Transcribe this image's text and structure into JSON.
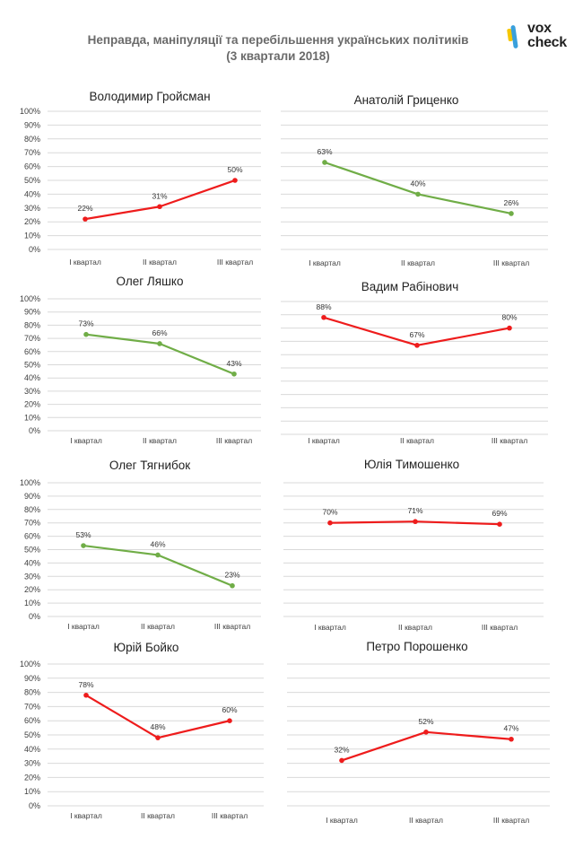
{
  "page": {
    "title_line1": "Неправда, маніпуляції та перебільшення українських політиків",
    "title_line2": "(3 квартали 2018)",
    "logo_line1": "vox",
    "logo_line2": "check"
  },
  "colors": {
    "red": "#ee1c1c",
    "green": "#70ad47",
    "grid": "#d9d9d9",
    "text": "#404040",
    "title": "#222222",
    "logo_yellow": "#f6c700",
    "logo_blue": "#3aa0dc"
  },
  "chart_data": [
    {
      "type": "line",
      "title": "Володимир Гройсман",
      "categories": [
        "I квартал",
        "II квартал",
        "III квартал"
      ],
      "values": [
        22,
        31,
        50
      ],
      "labels": [
        "22%",
        "31%",
        "50%"
      ],
      "color": "red",
      "yaxis": true,
      "yticks": [
        "0%",
        "10%",
        "20%",
        "30%",
        "40%",
        "50%",
        "60%",
        "70%",
        "80%",
        "90%",
        "100%"
      ],
      "ylim": [
        0,
        100
      ]
    },
    {
      "type": "line",
      "title": "Анатолій Гриценко",
      "categories": [
        "I квартал",
        "II квартал",
        "III квартал"
      ],
      "values": [
        63,
        40,
        26
      ],
      "labels": [
        "63%",
        "40%",
        "26%"
      ],
      "color": "green",
      "yaxis": false,
      "ylim": [
        0,
        100
      ]
    },
    {
      "type": "line",
      "title": "Олег Ляшко",
      "categories": [
        "I квартал",
        "II квартал",
        "III квартал"
      ],
      "values": [
        73,
        66,
        43
      ],
      "labels": [
        "73%",
        "66%",
        "43%"
      ],
      "color": "green",
      "yaxis": true,
      "yticks": [
        "0%",
        "10%",
        "20%",
        "30%",
        "40%",
        "50%",
        "60%",
        "70%",
        "80%",
        "90%",
        "100%"
      ],
      "ylim": [
        0,
        100
      ]
    },
    {
      "type": "line",
      "title": "Вадим Рабінович",
      "categories": [
        "I квартал",
        "II квартал",
        "III квартал"
      ],
      "values": [
        88,
        67,
        80
      ],
      "labels": [
        "88%",
        "67%",
        "80%"
      ],
      "color": "red",
      "yaxis": false,
      "ylim": [
        0,
        100
      ]
    },
    {
      "type": "line",
      "title": "Олег Тягнибок",
      "categories": [
        "I квартал",
        "II квартал",
        "III квартал"
      ],
      "values": [
        53,
        46,
        23
      ],
      "labels": [
        "53%",
        "46%",
        "23%"
      ],
      "color": "green",
      "yaxis": true,
      "yticks": [
        "0%",
        "10%",
        "20%",
        "30%",
        "40%",
        "50%",
        "60%",
        "70%",
        "80%",
        "90%",
        "100%"
      ],
      "ylim": [
        0,
        100
      ]
    },
    {
      "type": "line",
      "title": "Юлія Тимошенко",
      "categories": [
        "I квартал",
        "II квартал",
        "III квартал"
      ],
      "values": [
        70,
        71,
        69
      ],
      "labels": [
        "70%",
        "71%",
        "69%"
      ],
      "color": "red",
      "yaxis": false,
      "ylim": [
        0,
        100
      ]
    },
    {
      "type": "line",
      "title": "Юрій Бойко",
      "categories": [
        "I квартал",
        "II квартал",
        "III квартал"
      ],
      "values": [
        78,
        48,
        60
      ],
      "labels": [
        "78%",
        "48%",
        "60%"
      ],
      "color": "red",
      "yaxis": true,
      "yticks": [
        "0%",
        "10%",
        "20%",
        "30%",
        "40%",
        "50%",
        "60%",
        "70%",
        "80%",
        "90%",
        "100%"
      ],
      "ylim": [
        0,
        100
      ]
    },
    {
      "type": "line",
      "title": "Петро Порошенко",
      "categories": [
        "I квартал",
        "II квартал",
        "III квартал"
      ],
      "values": [
        32,
        52,
        47
      ],
      "labels": [
        "32%",
        "52%",
        "47%"
      ],
      "color": "red",
      "yaxis": false,
      "ylim": [
        0,
        100
      ]
    }
  ]
}
